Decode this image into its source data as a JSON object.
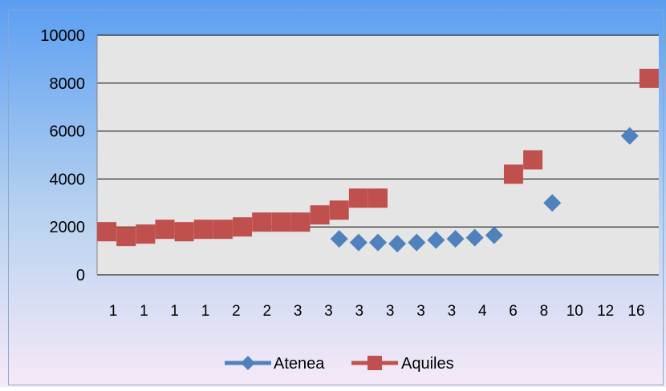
{
  "chart_data": {
    "type": "scatter",
    "title": "",
    "xlabel": "",
    "ylabel": "",
    "categories": [
      "1",
      "1",
      "1",
      "1",
      "1",
      "1",
      "1",
      "1",
      "2",
      "2",
      "2",
      "2",
      "3",
      "3",
      "3",
      "3",
      "3",
      "3",
      "3",
      "3",
      "3",
      "3",
      "4",
      "4",
      "6",
      "8",
      "10",
      "12",
      "16"
    ],
    "x_tick_labels": [
      "1",
      "1",
      "1",
      "1",
      "2",
      "2",
      "3",
      "3",
      "3",
      "3",
      "3",
      "3",
      "4",
      "6",
      "8",
      "10",
      "12",
      "16"
    ],
    "ylim": [
      0,
      10000
    ],
    "y_ticks": [
      "0",
      "2000",
      "4000",
      "6000",
      "8000",
      "10000"
    ],
    "grid": true,
    "legend_position": "bottom",
    "series": [
      {
        "name": "Atenea",
        "marker": "diamond",
        "color": "#4f81bd",
        "values": [
          null,
          null,
          null,
          null,
          null,
          null,
          null,
          null,
          null,
          null,
          null,
          null,
          1500,
          1350,
          1350,
          1300,
          1350,
          1450,
          1500,
          1550,
          1650,
          null,
          null,
          3000,
          null,
          null,
          null,
          5800,
          null
        ]
      },
      {
        "name": "Aquiles",
        "marker": "square",
        "color": "#c0504d",
        "values": [
          1800,
          1600,
          1700,
          1900,
          1800,
          1900,
          1900,
          2000,
          2200,
          2200,
          2200,
          2500,
          2700,
          3200,
          3200,
          null,
          null,
          null,
          null,
          null,
          null,
          4200,
          4800,
          null,
          null,
          null,
          null,
          null,
          8200
        ]
      }
    ]
  }
}
